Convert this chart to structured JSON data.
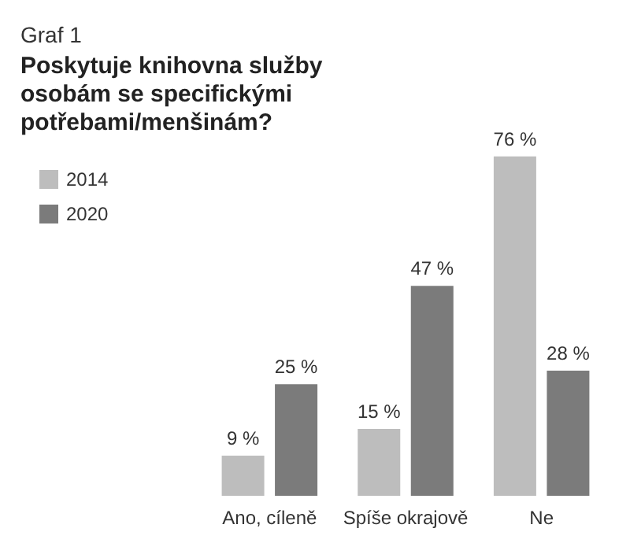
{
  "chart_data": {
    "type": "bar",
    "subtitle": "Graf 1",
    "title": "Poskytuje knihovna služby osobám se specifickými potřebami/menšinám?",
    "categories": [
      "Ano, cíleně",
      "Spíše okrajově",
      "Ne"
    ],
    "series": [
      {
        "name": "2014",
        "color": "#bdbdbd",
        "values": [
          9,
          15,
          76
        ],
        "value_labels": [
          "9 %",
          "15 %",
          "76 %"
        ]
      },
      {
        "name": "2020",
        "color": "#7b7b7b",
        "values": [
          25,
          47,
          28
        ],
        "value_labels": [
          "25 %",
          "47 %",
          "28 %"
        ]
      }
    ],
    "legend": "top left"
  }
}
